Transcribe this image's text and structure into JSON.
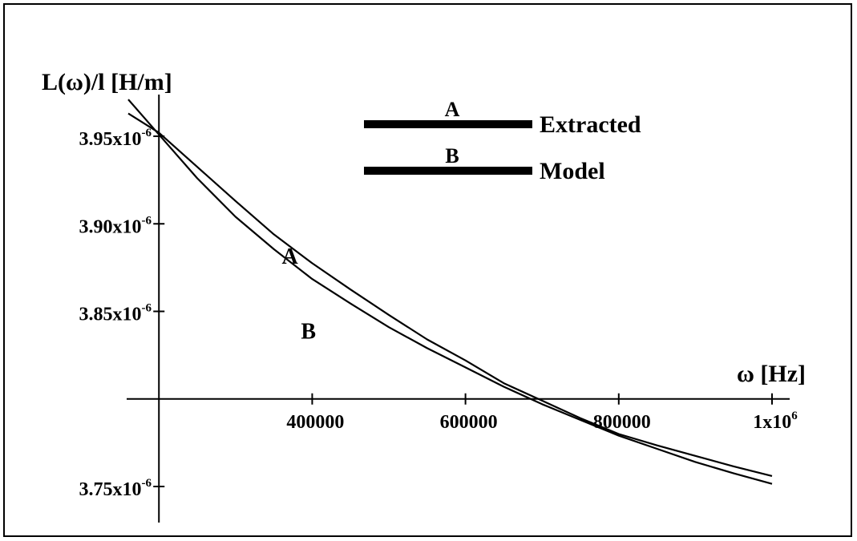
{
  "chart_data": {
    "type": "line",
    "ylabel": "L(ω)/l [H/m]",
    "xlabel": "ω [Hz]",
    "xlim": [
      160000,
      1000000
    ],
    "ylim": [
      3.75e-06,
      3.97e-06
    ],
    "x_axis_crossing_y": 3.8e-06,
    "x_ticks": [
      {
        "value": 400000,
        "label": "400000"
      },
      {
        "value": 600000,
        "label": "600000"
      },
      {
        "value": 800000,
        "label": "800000"
      },
      {
        "value": 1000000,
        "label": "1x10",
        "sup": "6"
      }
    ],
    "y_ticks": [
      {
        "value": 3.95e-06,
        "label": "3.95x10",
        "sup": "-6"
      },
      {
        "value": 3.9e-06,
        "label": "3.90x10",
        "sup": "-6"
      },
      {
        "value": 3.85e-06,
        "label": "3.85x10",
        "sup": "-6"
      },
      {
        "value": 3.75e-06,
        "label": "3.75x10",
        "sup": "-6"
      }
    ],
    "legend": {
      "placement": "top-center",
      "items": [
        {
          "marker": "A",
          "label": "Extracted"
        },
        {
          "marker": "B",
          "label": "Model"
        }
      ]
    },
    "series": [
      {
        "name": "Extracted",
        "marker": "A",
        "x": [
          160000,
          200000,
          250000,
          300000,
          350000,
          400000,
          450000,
          500000,
          550000,
          600000,
          650000,
          700000,
          750000,
          800000,
          850000,
          900000,
          950000,
          1000000
        ],
        "y": [
          3.963e-06,
          3.952e-06,
          3.9325e-06,
          3.913e-06,
          3.894e-06,
          3.8775e-06,
          3.8625e-06,
          3.848e-06,
          3.834e-06,
          3.822e-06,
          3.809e-06,
          3.799e-06,
          3.789e-06,
          3.78e-06,
          3.7735e-06,
          3.7675e-06,
          3.7615e-06,
          3.756e-06
        ],
        "label_at": {
          "x": 375000,
          "y": 3.881e-06
        }
      },
      {
        "name": "Model",
        "marker": "B",
        "x": [
          160000,
          200000,
          250000,
          300000,
          350000,
          400000,
          450000,
          500000,
          550000,
          600000,
          650000,
          700000,
          750000,
          800000,
          850000,
          900000,
          950000,
          1000000
        ],
        "y": [
          3.971e-06,
          3.951e-06,
          3.926e-06,
          3.904e-06,
          3.8855e-06,
          3.8685e-06,
          3.8545e-06,
          3.841e-06,
          3.829e-06,
          3.818e-06,
          3.807e-06,
          3.797e-06,
          3.788e-06,
          3.779e-06,
          3.7715e-06,
          3.764e-06,
          3.7575e-06,
          3.7515e-06
        ],
        "label_at": {
          "x": 400000,
          "y": 3.838e-06
        }
      }
    ]
  },
  "colors": {
    "line": "#000000",
    "background": "#ffffff"
  }
}
